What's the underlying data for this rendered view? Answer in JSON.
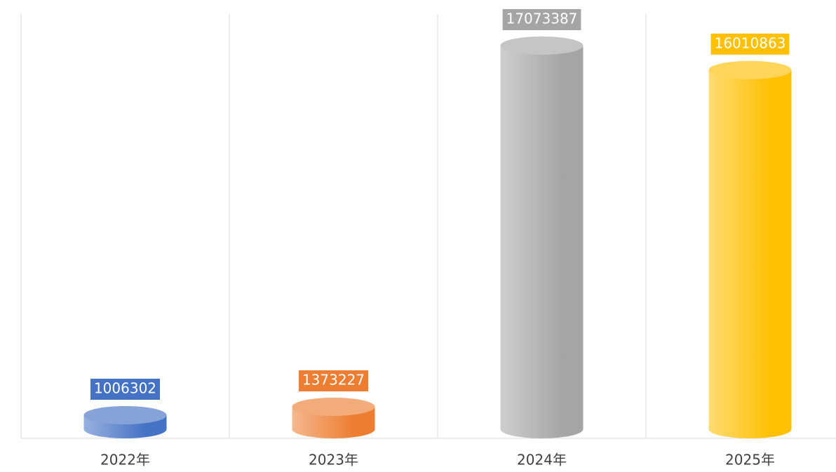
{
  "chart_data": {
    "type": "bar",
    "categories": [
      "2022年",
      "2023年",
      "2024年",
      "2025年"
    ],
    "values": [
      1006302,
      1373227,
      17073387,
      16010863
    ],
    "colors": [
      "#4472c4",
      "#ed7d31",
      "#a5a5a5",
      "#ffc000"
    ],
    "grid": true
  }
}
